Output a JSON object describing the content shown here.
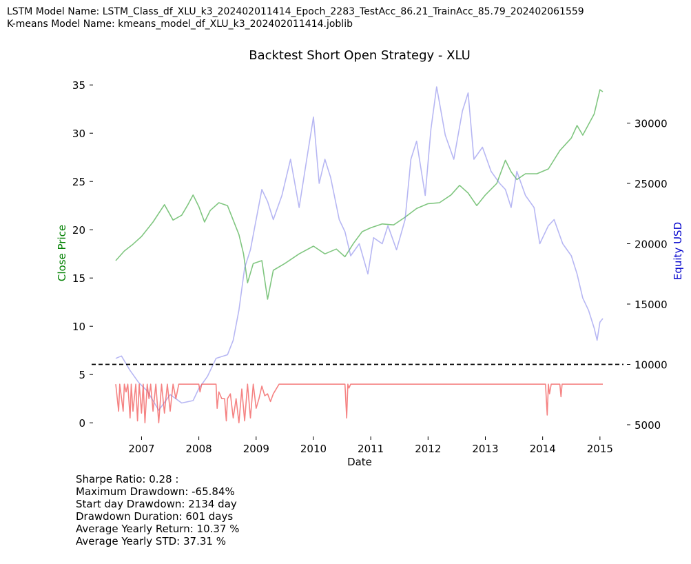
{
  "header": {
    "lstm_line": "LSTM Model Name: LSTM_Class_df_XLU_k3_202402011414_Epoch_2283_TestAcc_86.21_TrainAcc_85.79_202402061559",
    "kmeans_line": "K-means Model Name: kmeans_model_df_XLU_k3_202402011414.joblib"
  },
  "stats": {
    "sharpe": "Sharpe Ratio: 0.28 :",
    "max_drawdown": "Maximum Drawdown: -65.84%",
    "start_day_drawdown": "Start day Drawdown: 2134 day",
    "drawdown_duration": "Drawdown Duration: 601 days",
    "avg_yearly_return": "Average Yearly Return: 10.37 %",
    "avg_yearly_std": "Average Yearly STD: 37.31 %"
  },
  "colors": {
    "close": "#2ca02c",
    "equity": "#7b7bea",
    "signal": "#f25a5a",
    "baseline": "#000000",
    "left_axis_label": "#008000",
    "right_axis_label": "#0000cc"
  },
  "chart_data": {
    "type": "line",
    "title": "Backtest Short Open Strategy - XLU",
    "xlabel": "Date",
    "ylabel_left": "Close Price",
    "ylabel_right": "Equity USD",
    "x_range": [
      2006.55,
      2015.05
    ],
    "ylim_left": [
      -1.2,
      35.8
    ],
    "ylim_right": [
      4200,
      33800
    ],
    "x_ticks": [
      2007,
      2008,
      2009,
      2010,
      2011,
      2012,
      2013,
      2014,
      2015
    ],
    "x_tick_labels": [
      "2007",
      "2008",
      "2009",
      "2010",
      "2011",
      "2012",
      "2013",
      "2014",
      "2015"
    ],
    "y_left_ticks": [
      0,
      5,
      10,
      15,
      20,
      25,
      30,
      35
    ],
    "y_left_tick_labels": [
      "0",
      "5",
      "10",
      "15",
      "20",
      "25",
      "30",
      "35"
    ],
    "y_right_ticks": [
      5000,
      10000,
      15000,
      20000,
      25000,
      30000
    ],
    "y_right_tick_labels": [
      "5000",
      "10000",
      "15000",
      "20000",
      "25000",
      "30000"
    ],
    "baseline_equity": 10000,
    "grid": false,
    "series": [
      {
        "axis": "left",
        "color_key": "close",
        "x": [
          2006.55,
          2006.7,
          2006.85,
          2007.0,
          2007.2,
          2007.4,
          2007.55,
          2007.7,
          2007.8,
          2007.9,
          2008.0,
          2008.1,
          2008.2,
          2008.35,
          2008.5,
          2008.6,
          2008.7,
          2008.78,
          2008.85,
          2008.95,
          2009.1,
          2009.2,
          2009.3,
          2009.5,
          2009.75,
          2010.0,
          2010.2,
          2010.4,
          2010.55,
          2010.7,
          2010.85,
          2011.0,
          2011.2,
          2011.4,
          2011.6,
          2011.8,
          2012.0,
          2012.2,
          2012.4,
          2012.55,
          2012.7,
          2012.85,
          2013.0,
          2013.2,
          2013.35,
          2013.45,
          2013.55,
          2013.7,
          2013.9,
          2014.1,
          2014.3,
          2014.5,
          2014.6,
          2014.7,
          2014.8,
          2014.9,
          2015.0,
          2015.05
        ],
        "y": [
          16.8,
          17.8,
          18.5,
          19.3,
          20.8,
          22.6,
          21.0,
          21.5,
          22.5,
          23.6,
          22.4,
          20.8,
          22.0,
          22.8,
          22.5,
          21.0,
          19.5,
          17.5,
          14.5,
          16.5,
          16.8,
          12.8,
          15.8,
          16.5,
          17.5,
          18.3,
          17.5,
          18.0,
          17.2,
          18.6,
          19.8,
          20.2,
          20.6,
          20.5,
          21.3,
          22.2,
          22.7,
          22.8,
          23.6,
          24.6,
          23.8,
          22.5,
          23.6,
          24.8,
          27.2,
          26.0,
          25.2,
          25.8,
          25.8,
          26.3,
          28.2,
          29.5,
          30.8,
          29.8,
          30.9,
          32.0,
          34.5,
          34.3
        ]
      },
      {
        "axis": "right",
        "color_key": "equity",
        "x": [
          2006.55,
          2006.65,
          2006.8,
          2006.95,
          2007.1,
          2007.3,
          2007.5,
          2007.7,
          2007.9,
          2008.0,
          2008.15,
          2008.3,
          2008.5,
          2008.6,
          2008.7,
          2008.8,
          2008.9,
          2009.0,
          2009.1,
          2009.2,
          2009.3,
          2009.45,
          2009.6,
          2009.75,
          2009.9,
          2010.0,
          2010.1,
          2010.2,
          2010.3,
          2010.45,
          2010.55,
          2010.65,
          2010.8,
          2010.95,
          2011.05,
          2011.2,
          2011.3,
          2011.45,
          2011.6,
          2011.7,
          2011.8,
          2011.95,
          2012.05,
          2012.15,
          2012.3,
          2012.45,
          2012.6,
          2012.7,
          2012.8,
          2012.95,
          2013.1,
          2013.25,
          2013.35,
          2013.45,
          2013.55,
          2013.7,
          2013.85,
          2013.95,
          2014.1,
          2014.2,
          2014.35,
          2014.5,
          2014.6,
          2014.7,
          2014.8,
          2014.9,
          2014.95,
          2015.0,
          2015.05
        ],
        "y": [
          10500,
          10700,
          9500,
          8500,
          7800,
          6200,
          7500,
          6800,
          7000,
          8000,
          9000,
          10500,
          10800,
          12000,
          14500,
          18000,
          19500,
          22000,
          24500,
          23500,
          22000,
          24000,
          27000,
          23000,
          27500,
          30500,
          25000,
          27000,
          25500,
          22000,
          21000,
          19000,
          20000,
          17500,
          20500,
          20000,
          21500,
          19500,
          22000,
          27000,
          28500,
          24000,
          29500,
          33000,
          29000,
          27000,
          31000,
          32500,
          27000,
          28000,
          26000,
          25000,
          24500,
          23000,
          26000,
          24000,
          23000,
          20000,
          21500,
          22000,
          20000,
          19000,
          17500,
          15500,
          14500,
          13000,
          12000,
          13500,
          13800
        ]
      },
      {
        "axis": "left",
        "color_key": "signal",
        "x": [
          2006.55,
          2006.6,
          2006.62,
          2006.68,
          2006.7,
          2006.73,
          2006.76,
          2006.8,
          2006.82,
          2006.85,
          2006.9,
          2006.93,
          2006.96,
          2007.0,
          2007.03,
          2007.06,
          2007.1,
          2007.13,
          2007.16,
          2007.2,
          2007.25,
          2007.3,
          2007.35,
          2007.4,
          2007.45,
          2007.5,
          2007.55,
          2007.6,
          2007.65,
          2007.7,
          2008.0,
          2008.02,
          2008.05,
          2008.1,
          2008.3,
          2008.32,
          2008.35,
          2008.4,
          2008.45,
          2008.48,
          2008.5,
          2008.55,
          2008.6,
          2008.65,
          2008.7,
          2008.75,
          2008.8,
          2008.85,
          2008.9,
          2008.95,
          2009.0,
          2009.05,
          2009.1,
          2009.15,
          2009.2,
          2009.25,
          2009.3,
          2009.35,
          2009.4,
          2010.55,
          2010.58,
          2010.6,
          2010.62,
          2010.65,
          2014.05,
          2014.08,
          2014.1,
          2014.12,
          2014.15,
          2014.3,
          2014.32,
          2014.34,
          2015.05
        ],
        "y": [
          4,
          1.2,
          4,
          1.2,
          4,
          3.2,
          4,
          0.5,
          4,
          1.2,
          4,
          0.2,
          4,
          1.0,
          4,
          0.0,
          4,
          2.5,
          4,
          1.2,
          4,
          0.0,
          4,
          1.0,
          4,
          1.2,
          4,
          2.5,
          4,
          4,
          4,
          3.2,
          4,
          4,
          4,
          1.5,
          3.2,
          2.5,
          2.5,
          0.2,
          2.5,
          3.0,
          0.5,
          2.5,
          0.0,
          3.5,
          0.2,
          4,
          0.5,
          4,
          1.5,
          2.5,
          3.8,
          2.8,
          3.0,
          2.2,
          3.0,
          3.5,
          4,
          4,
          0.5,
          4,
          3.6,
          4,
          4,
          0.8,
          4,
          3.0,
          4,
          4,
          2.7,
          4,
          4
        ]
      }
    ]
  }
}
